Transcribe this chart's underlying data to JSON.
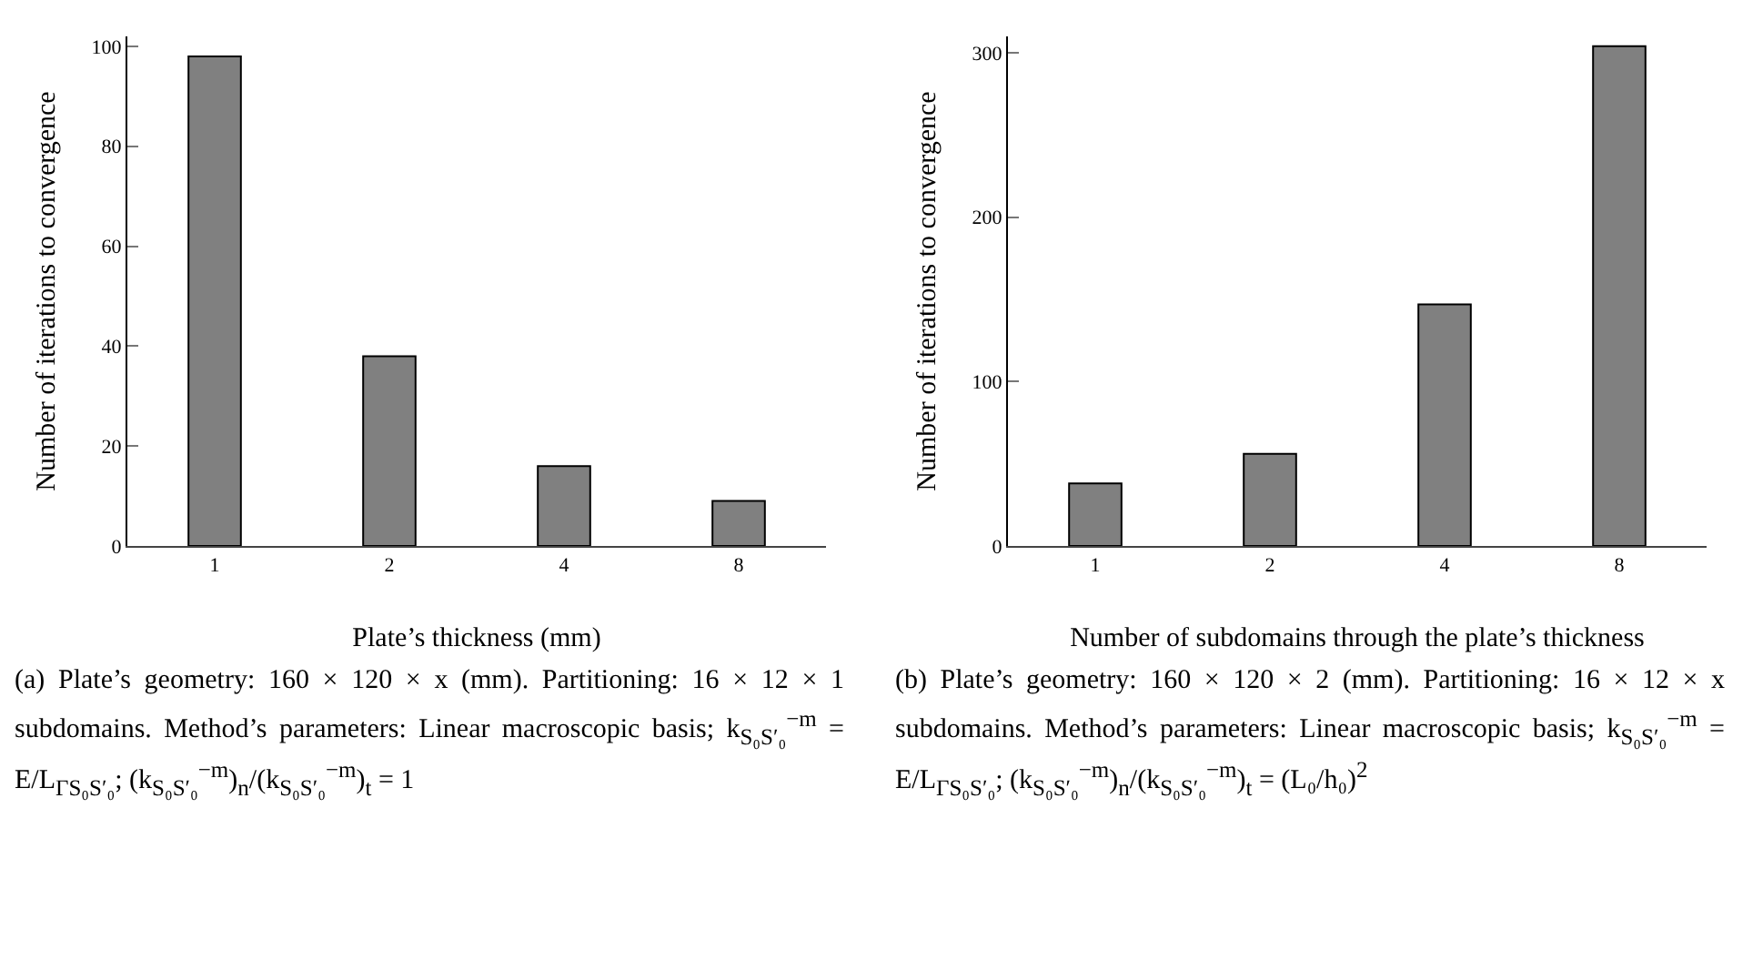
{
  "chart_data": [
    {
      "type": "bar",
      "xlabel": "Plate’s thickness (mm)",
      "ylabel": "Number of iterations to convergence",
      "categories": [
        "1",
        "2",
        "4",
        "8"
      ],
      "values": [
        98,
        38,
        16,
        9
      ],
      "color": "#808080",
      "ylim": [
        0,
        102
      ],
      "yticks": [
        0,
        20,
        40,
        60,
        80,
        100
      ],
      "grid": false,
      "annotations": [
        "(a) Plate’s geometry: 160 × 120 × x (mm). Partitioning: 16 × 12 × 1 subdomains. Method’s parameters: Linear macroscopic basis; k$_{S₀S′₀}$$^{−m}$ = E/L$_{ΓS₀S′₀}$; (k$_{S₀S′₀}$$^{−m}$)$_{n}$/(k$_{S₀S′₀}$$^{−m}$)$_{t}$ = 1"
      ]
    },
    {
      "type": "bar",
      "xlabel": "Number of subdomains through the plate’s thickness",
      "ylabel": "Number of iterations to convergence",
      "categories": [
        "1",
        "2",
        "4",
        "8"
      ],
      "values": [
        38,
        56,
        147,
        304
      ],
      "color": "#808080",
      "ylim": [
        0,
        310
      ],
      "yticks": [
        0,
        100,
        200,
        300
      ],
      "grid": false,
      "annotations": [
        "(b) Plate’s geometry: 160 × 120 × 2 (mm). Partitioning: 16 × 12 × x subdomains. Method’s parameters: Linear macroscopic basis; k$_{S₀S′₀}$$^{−m}$ = E/L$_{ΓS₀S′₀}$; (k$_{S₀S′₀}$$^{−m}$)$_{n}$/(k$_{S₀S′₀}$$^{−m}$)$_{t}$ = (L₀/h₀)$^{2}$"
      ]
    }
  ]
}
